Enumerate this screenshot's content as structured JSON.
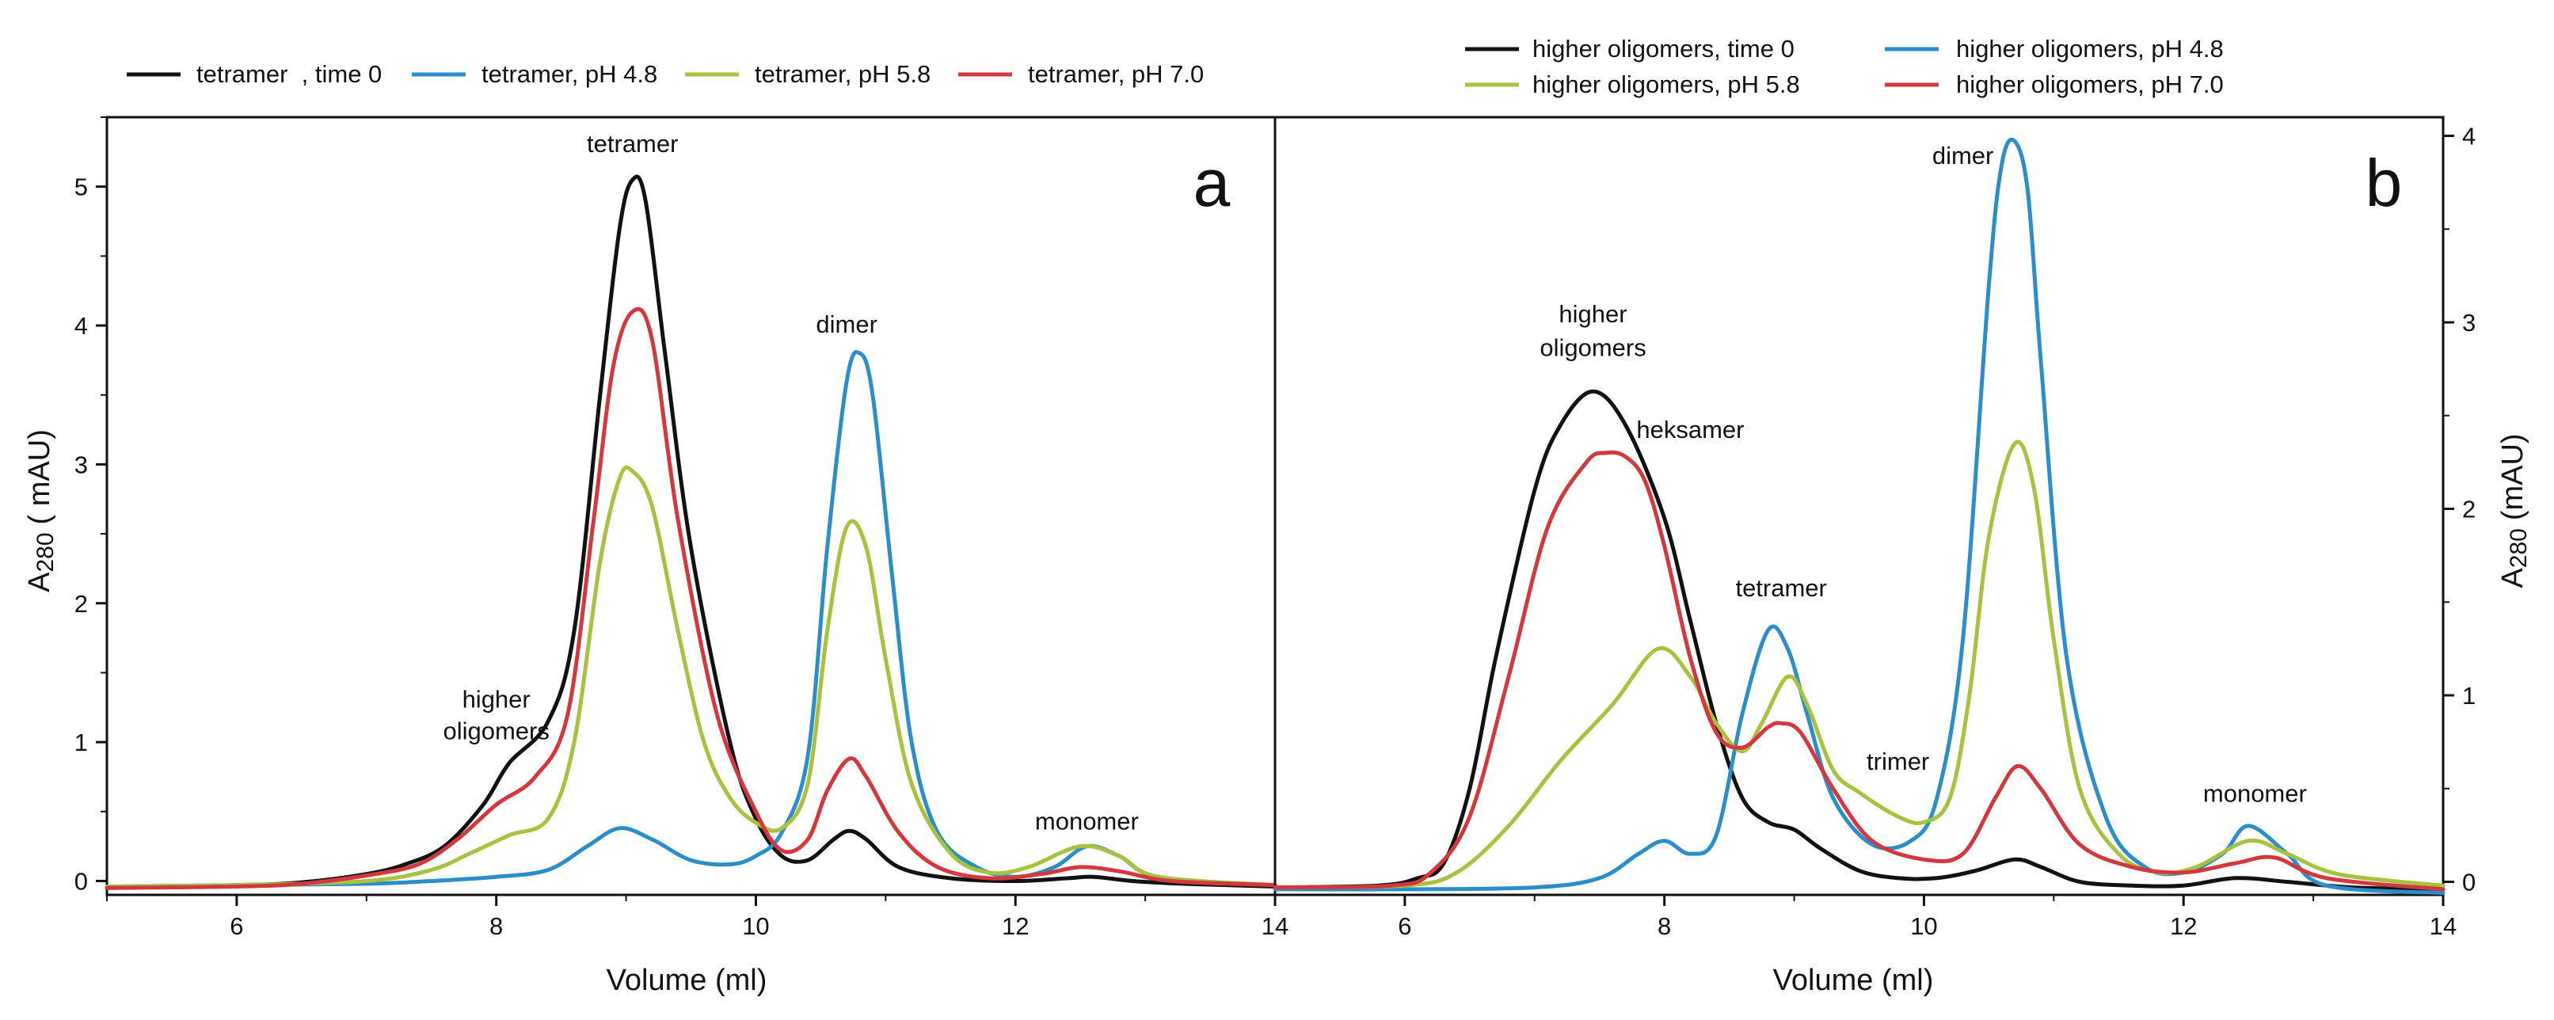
{
  "chart_data": [
    {
      "type": "line",
      "panel_label": "a",
      "xlabel": "Volume (ml)",
      "ylabel_main": "A",
      "ylabel_sub": "280",
      "ylabel_unit": "( mAU)",
      "xlim": [
        5,
        14
      ],
      "ylim": [
        -0.1,
        5.5
      ],
      "x_ticks": [
        6,
        8,
        10,
        12,
        14
      ],
      "y_ticks": [
        0,
        1,
        2,
        3,
        4,
        5
      ],
      "legend": [
        "tetramer  , time 0",
        "tetramer, pH 4.8",
        "tetramer, pH 5.8",
        "tetramer, pH 7.0"
      ],
      "annotations": [
        {
          "text": "tetramer",
          "x": 9.05,
          "y": 5.25
        },
        {
          "text": "dimer",
          "x": 10.7,
          "y": 3.95
        },
        {
          "text": "higher",
          "x": 8.0,
          "y": 1.25
        },
        {
          "text": "oligomers",
          "x": 8.0,
          "y": 1.02
        },
        {
          "text": "monomer",
          "x": 12.55,
          "y": 0.37
        }
      ],
      "series": [
        {
          "name": "tetramer  , time 0",
          "color": "#111111",
          "x": [
            5,
            6,
            6.5,
            7,
            7.3,
            7.6,
            7.9,
            8.1,
            8.4,
            8.6,
            8.8,
            8.95,
            9.05,
            9.15,
            9.3,
            9.5,
            9.8,
            10.0,
            10.2,
            10.4,
            10.6,
            10.72,
            10.85,
            11.1,
            11.5,
            12.0,
            12.4,
            12.6,
            12.9,
            13.3,
            14
          ],
          "y": [
            -0.05,
            -0.03,
            -0.01,
            0.05,
            0.12,
            0.25,
            0.55,
            0.85,
            1.15,
            1.8,
            3.5,
            4.7,
            5.05,
            4.9,
            3.8,
            2.4,
            1.0,
            0.45,
            0.18,
            0.15,
            0.3,
            0.36,
            0.3,
            0.1,
            0.02,
            0.0,
            0.02,
            0.03,
            0.0,
            -0.02,
            -0.04
          ]
        },
        {
          "name": "tetramer, pH 4.8",
          "color": "#2b8ec8",
          "x": [
            5,
            6,
            7,
            7.5,
            8.0,
            8.4,
            8.7,
            8.95,
            9.2,
            9.5,
            9.8,
            10.0,
            10.2,
            10.4,
            10.55,
            10.7,
            10.8,
            10.9,
            11.05,
            11.2,
            11.4,
            11.7,
            12.0,
            12.3,
            12.55,
            12.8,
            13.1,
            14
          ],
          "y": [
            -0.04,
            -0.03,
            -0.02,
            0.0,
            0.03,
            0.08,
            0.25,
            0.38,
            0.3,
            0.15,
            0.12,
            0.18,
            0.35,
            0.9,
            2.4,
            3.6,
            3.8,
            3.5,
            2.2,
            1.0,
            0.35,
            0.1,
            0.03,
            0.1,
            0.25,
            0.18,
            0.03,
            -0.03
          ]
        },
        {
          "name": "tetramer, pH 5.8",
          "color": "#a7c23e",
          "x": [
            5,
            6,
            7,
            7.5,
            7.8,
            8.1,
            8.4,
            8.6,
            8.8,
            8.95,
            9.05,
            9.2,
            9.4,
            9.6,
            9.8,
            10.0,
            10.2,
            10.4,
            10.55,
            10.7,
            10.85,
            11.0,
            11.2,
            11.5,
            11.8,
            12.1,
            12.5,
            12.8,
            13.1,
            14
          ],
          "y": [
            -0.04,
            -0.03,
            0.0,
            0.08,
            0.2,
            0.33,
            0.45,
            1.0,
            2.3,
            2.9,
            2.95,
            2.7,
            1.8,
            1.0,
            0.6,
            0.42,
            0.38,
            0.7,
            1.8,
            2.55,
            2.4,
            1.6,
            0.7,
            0.2,
            0.06,
            0.1,
            0.25,
            0.18,
            0.03,
            -0.03
          ]
        },
        {
          "name": "tetramer, pH 7.0",
          "color": "#d3383e",
          "x": [
            5,
            6,
            6.5,
            7,
            7.4,
            7.7,
            8.0,
            8.3,
            8.55,
            8.75,
            8.9,
            9.05,
            9.2,
            9.4,
            9.7,
            10.0,
            10.2,
            10.4,
            10.55,
            10.72,
            10.85,
            11.1,
            11.4,
            11.8,
            12.2,
            12.5,
            12.8,
            13.2,
            14
          ],
          "y": [
            -0.05,
            -0.04,
            -0.02,
            0.04,
            0.12,
            0.3,
            0.55,
            0.75,
            1.2,
            2.6,
            3.7,
            4.1,
            3.9,
            2.6,
            1.2,
            0.5,
            0.22,
            0.3,
            0.65,
            0.88,
            0.75,
            0.35,
            0.1,
            0.02,
            0.05,
            0.1,
            0.07,
            0.0,
            -0.03
          ]
        }
      ]
    },
    {
      "type": "line",
      "panel_label": "b",
      "xlabel": "Volume (ml)",
      "ylabel_main": "A",
      "ylabel_sub": "280",
      "ylabel_unit": "(mAU)",
      "xlim": [
        5,
        14
      ],
      "ylim": [
        -0.07,
        4.1
      ],
      "x_ticks": [
        6,
        8,
        10,
        12,
        14
      ],
      "y_ticks": [
        0,
        1,
        2,
        3,
        4
      ],
      "legend": [
        "higher oligomers, time 0",
        "higher oligomers, pH 4.8",
        "higher oligomers, pH 5.8",
        "higher oligomers, pH 7.0"
      ],
      "annotations": [
        {
          "text": "higher",
          "x": 7.45,
          "y": 3.0
        },
        {
          "text": "oligomers",
          "x": 7.45,
          "y": 2.82
        },
        {
          "text": "heksamer",
          "x": 8.2,
          "y": 2.38
        },
        {
          "text": "tetramer",
          "x": 8.9,
          "y": 1.53
        },
        {
          "text": "trimer",
          "x": 9.8,
          "y": 0.6
        },
        {
          "text": "dimer",
          "x": 10.3,
          "y": 3.85
        },
        {
          "text": "monomer",
          "x": 12.55,
          "y": 0.43
        }
      ],
      "series": [
        {
          "name": "higher oligomers, time 0",
          "color": "#111111",
          "x": [
            5,
            5.8,
            6.1,
            6.3,
            6.5,
            6.7,
            7.0,
            7.2,
            7.45,
            7.7,
            8.0,
            8.2,
            8.4,
            8.6,
            8.8,
            9.0,
            9.2,
            9.5,
            9.8,
            10.1,
            10.4,
            10.7,
            10.9,
            11.2,
            11.6,
            12.0,
            12.4,
            12.8,
            13.3,
            14
          ],
          "y": [
            -0.03,
            -0.02,
            0.02,
            0.1,
            0.5,
            1.2,
            2.1,
            2.45,
            2.63,
            2.45,
            1.95,
            1.4,
            0.85,
            0.45,
            0.32,
            0.28,
            0.18,
            0.06,
            0.02,
            0.02,
            0.06,
            0.12,
            0.08,
            0.0,
            -0.02,
            -0.02,
            0.02,
            0.0,
            -0.03,
            -0.04
          ]
        },
        {
          "name": "higher oligomers, pH 4.8",
          "color": "#2b8ec8",
          "x": [
            5,
            6,
            7,
            7.5,
            7.8,
            8.0,
            8.2,
            8.4,
            8.6,
            8.8,
            8.95,
            9.1,
            9.3,
            9.6,
            9.9,
            10.1,
            10.3,
            10.5,
            10.6,
            10.7,
            10.8,
            10.9,
            11.1,
            11.4,
            11.7,
            12.0,
            12.3,
            12.5,
            12.8,
            13.1,
            14
          ],
          "y": [
            -0.04,
            -0.04,
            -0.03,
            0.02,
            0.15,
            0.22,
            0.15,
            0.25,
            0.9,
            1.35,
            1.25,
            0.9,
            0.45,
            0.2,
            0.22,
            0.45,
            1.3,
            3.2,
            3.85,
            3.97,
            3.7,
            2.8,
            1.2,
            0.35,
            0.08,
            0.05,
            0.15,
            0.3,
            0.15,
            -0.02,
            -0.06
          ]
        },
        {
          "name": "higher oligomers, pH 5.8",
          "color": "#a7c23e",
          "x": [
            5,
            6.0,
            6.4,
            6.8,
            7.2,
            7.6,
            7.95,
            8.2,
            8.4,
            8.6,
            8.75,
            8.95,
            9.1,
            9.3,
            9.5,
            9.8,
            10.0,
            10.2,
            10.35,
            10.5,
            10.7,
            10.85,
            11.0,
            11.2,
            11.5,
            11.8,
            12.1,
            12.5,
            12.8,
            13.2,
            14
          ],
          "y": [
            -0.03,
            -0.02,
            0.05,
            0.3,
            0.65,
            0.95,
            1.25,
            1.1,
            0.85,
            0.7,
            0.85,
            1.1,
            0.95,
            0.6,
            0.48,
            0.35,
            0.32,
            0.45,
            1.0,
            1.85,
            2.35,
            2.1,
            1.3,
            0.5,
            0.15,
            0.05,
            0.08,
            0.22,
            0.15,
            0.04,
            -0.02
          ]
        },
        {
          "name": "higher oligomers, pH 7.0",
          "color": "#d3383e",
          "x": [
            5,
            5.9,
            6.2,
            6.5,
            6.8,
            7.1,
            7.4,
            7.55,
            7.7,
            7.85,
            8.0,
            8.2,
            8.4,
            8.6,
            8.8,
            8.9,
            9.05,
            9.3,
            9.6,
            10.0,
            10.3,
            10.55,
            10.72,
            10.9,
            11.2,
            11.6,
            12.0,
            12.4,
            12.7,
            13.1,
            14
          ],
          "y": [
            -0.03,
            -0.02,
            0.05,
            0.35,
            1.1,
            1.9,
            2.25,
            2.3,
            2.28,
            2.15,
            1.8,
            1.2,
            0.8,
            0.72,
            0.83,
            0.85,
            0.8,
            0.5,
            0.22,
            0.12,
            0.15,
            0.45,
            0.62,
            0.5,
            0.2,
            0.08,
            0.05,
            0.1,
            0.13,
            0.02,
            -0.04
          ]
        }
      ]
    }
  ]
}
